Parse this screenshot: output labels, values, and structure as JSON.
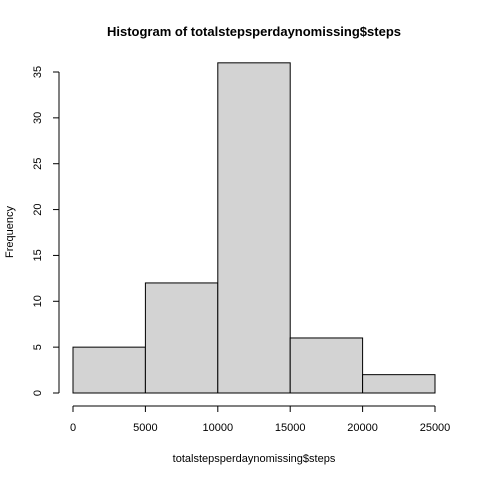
{
  "chart_data": {
    "type": "bar",
    "title": "Histogram of totalstepsperdaynomissing$steps",
    "xlabel": "totalstepsperdaynomissing$steps",
    "ylabel": "Frequency",
    "bins": [
      {
        "from": 0,
        "to": 5000,
        "count": 5
      },
      {
        "from": 5000,
        "to": 10000,
        "count": 12
      },
      {
        "from": 10000,
        "to": 15000,
        "count": 36
      },
      {
        "from": 15000,
        "to": 20000,
        "count": 6
      },
      {
        "from": 20000,
        "to": 25000,
        "count": 2
      }
    ],
    "xlim": [
      0,
      25000
    ],
    "ylim": [
      0,
      35
    ],
    "x_ticks": [
      "0",
      "5000",
      "10000",
      "15000",
      "20000",
      "25000"
    ],
    "y_ticks": [
      "0",
      "5",
      "10",
      "15",
      "20",
      "25",
      "30",
      "35"
    ],
    "bar_color": "#d3d3d3",
    "grid": false
  }
}
